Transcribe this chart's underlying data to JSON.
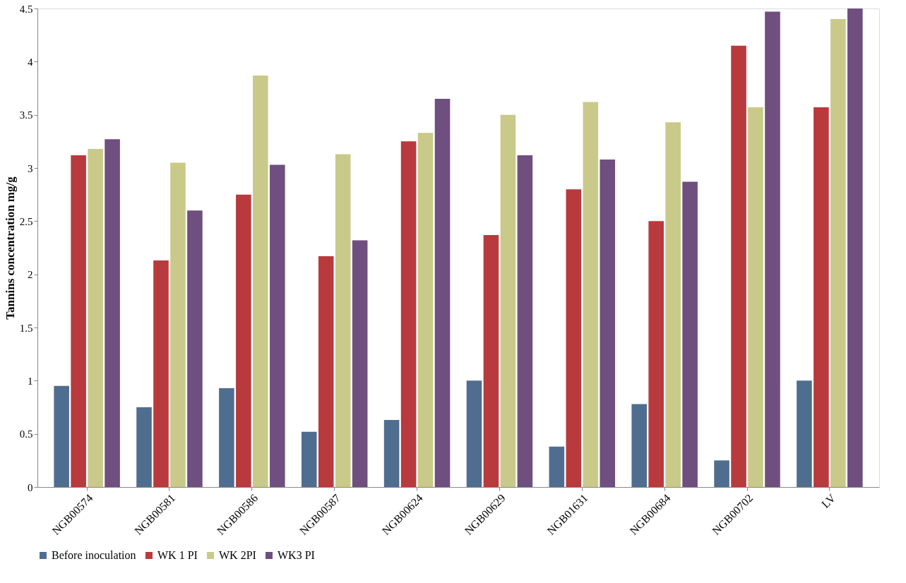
{
  "chart_data": {
    "type": "bar",
    "ylabel": "Tannins concentration mg/g",
    "categories": [
      "NGB00574",
      "NGB00581",
      "NGB00586",
      "NGB00587",
      "NGB00624",
      "NGB00629",
      "NGB01631",
      "NGB00684",
      "NGB00702",
      "LV"
    ],
    "series": [
      {
        "name": "Before inoculation",
        "color": "#4f6d8f",
        "values": [
          0.95,
          0.75,
          0.93,
          0.52,
          0.63,
          1.0,
          0.38,
          0.78,
          0.25,
          1.0
        ]
      },
      {
        "name": "WK 1 PI",
        "color": "#b83a3d",
        "values": [
          3.12,
          2.13,
          2.75,
          2.17,
          3.25,
          2.37,
          2.8,
          2.5,
          4.15,
          3.57
        ]
      },
      {
        "name": "WK 2PI",
        "color": "#c9c98a",
        "values": [
          3.18,
          3.05,
          3.87,
          3.13,
          3.33,
          3.5,
          3.62,
          3.43,
          3.57,
          4.4
        ]
      },
      {
        "name": "WK3 PI",
        "color": "#6e4f7f",
        "values": [
          3.27,
          2.6,
          3.03,
          2.32,
          3.65,
          3.12,
          3.08,
          2.87,
          4.47,
          4.5
        ]
      }
    ],
    "ylim": [
      0,
      4.5
    ],
    "yticks": [
      0,
      0.5,
      1,
      1.5,
      2,
      2.5,
      3,
      3.5,
      4,
      4.5
    ],
    "grid": false,
    "legend": "bottom"
  }
}
